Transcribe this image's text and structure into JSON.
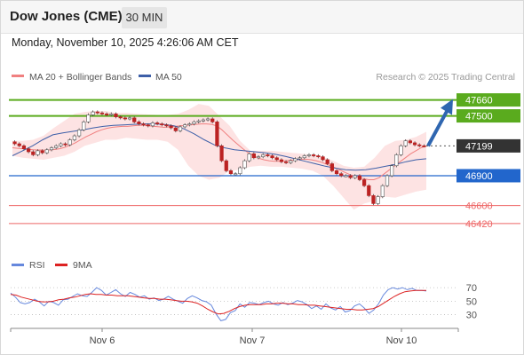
{
  "header": {
    "title": "Dow Jones (CME)",
    "timeframe": "30 MIN",
    "datetime": "Monday, November 10, 2025 4:26:06 AM CET"
  },
  "legend": {
    "bollinger_label": "MA 20 + Bollinger Bands",
    "ma50_label": "MA 50",
    "credit": "Research © 2025 Trading Central",
    "rsi_label": "RSI",
    "rsi_ma_label": "9MA"
  },
  "colors": {
    "bollinger": "#f08080",
    "band_fill": "#fde3e3",
    "ma50": "#3d5fa8",
    "resistance": "#5aab1e",
    "pivot": "#2266cc",
    "support": "#ee6666",
    "last_price": "#333333",
    "arrow": "#2f66b0",
    "rsi": "#6688dd",
    "rsi_ma": "#dd2222",
    "candle_up": "#ffffff",
    "candle_down": "#bb2222",
    "candle_wick": "#444444"
  },
  "chart_data": [
    {
      "type": "candlestick",
      "title": "Dow Jones (CME)",
      "timeframe": "30 MIN",
      "ylim": [
        46330,
        47790
      ],
      "x_tick_labels": [
        "Nov 6",
        "Nov 7",
        "Nov 10"
      ],
      "levels": [
        {
          "value": 47660,
          "label": "47660",
          "role": "resistance"
        },
        {
          "value": 47500,
          "label": "47500",
          "role": "resistance"
        },
        {
          "value": 47199,
          "label": "47199",
          "role": "last"
        },
        {
          "value": 46900,
          "label": "46900",
          "role": "pivot"
        },
        {
          "value": 46600,
          "label": "46600",
          "role": "support"
        },
        {
          "value": 46420,
          "label": "46420",
          "role": "support"
        }
      ],
      "close": [
        47220,
        47200,
        47170,
        47140,
        47110,
        47150,
        47130,
        47160,
        47180,
        47200,
        47220,
        47210,
        47260,
        47300,
        47360,
        47440,
        47510,
        47540,
        47530,
        47520,
        47510,
        47520,
        47490,
        47480,
        47470,
        47480,
        47440,
        47420,
        47410,
        47400,
        47430,
        47420,
        47410,
        47400,
        47380,
        47350,
        47390,
        47410,
        47420,
        47440,
        47450,
        47460,
        47470,
        47440,
        47200,
        47050,
        46950,
        46920,
        46920,
        46980,
        47050,
        47120,
        47080,
        47090,
        47110,
        47100,
        47080,
        47060,
        47040,
        47030,
        47050,
        47070,
        47080,
        47100,
        47110,
        47100,
        47090,
        47060,
        47020,
        46950,
        46920,
        46900,
        46900,
        46880,
        46900,
        46860,
        46800,
        46700,
        46620,
        46690,
        46800,
        46900,
        47000,
        47110,
        47200,
        47250,
        47230,
        47210,
        47200,
        47199
      ],
      "ma20": [
        47180,
        47175,
        47170,
        47165,
        47160,
        47158,
        47157,
        47158,
        47162,
        47170,
        47185,
        47205,
        47230,
        47260,
        47290,
        47315,
        47340,
        47360,
        47375,
        47385,
        47390,
        47395,
        47395,
        47400,
        47405,
        47405,
        47400,
        47395,
        47390,
        47385,
        47390,
        47395,
        47400,
        47405,
        47410,
        47415,
        47420,
        47420,
        47415,
        47400,
        47360,
        47310,
        47260,
        47215,
        47170,
        47130,
        47100,
        47075,
        47060,
        47050,
        47045,
        47045,
        47050,
        47055,
        47060,
        47065,
        47065,
        47060,
        47050,
        47035,
        47015,
        46995,
        46970,
        46945,
        46920,
        46900,
        46885,
        46870,
        46860,
        46860,
        46880,
        46920,
        46960,
        47000,
        47040,
        47080,
        47120,
        47150,
        47180,
        47200
      ],
      "ma50": [
        47100,
        47150,
        47200,
        47260,
        47310,
        47330,
        47345,
        47360,
        47380,
        47395,
        47405,
        47410,
        47415,
        47420,
        47420,
        47415,
        47400,
        47370,
        47320,
        47260,
        47210,
        47180,
        47160,
        47150,
        47140,
        47130,
        47115,
        47095,
        47070,
        47045,
        47020,
        46995,
        46975,
        46960,
        46955,
        46960,
        46975,
        46995,
        47015,
        47040,
        47060,
        47070
      ],
      "upper_band": [
        47250,
        47250,
        47260,
        47300,
        47380,
        47450,
        47520,
        47540,
        47550,
        47550,
        47530,
        47530,
        47520,
        47515,
        47510,
        47510,
        47520,
        47560,
        47620,
        47600,
        47500,
        47400,
        47250,
        47150,
        47150,
        47150,
        47140,
        47130,
        47120,
        47110,
        47090,
        47050,
        47000,
        46980,
        46990,
        47080,
        47200,
        47250,
        47260,
        47290,
        47340
      ],
      "lower_band": [
        47100,
        47080,
        47070,
        47060,
        47080,
        47100,
        47140,
        47200,
        47230,
        47260,
        47260,
        47280,
        47270,
        47260,
        47260,
        47240,
        47160,
        47000,
        46900,
        46860,
        46880,
        46950,
        46960,
        46990,
        47000,
        46990,
        46990,
        46980,
        46970,
        46950,
        46900,
        46800,
        46680,
        46560,
        46620,
        46650,
        46690,
        46680,
        46710,
        46740,
        46760
      ],
      "forecast": {
        "from": 47199,
        "to": 47660
      }
    },
    {
      "type": "line",
      "title": "RSI",
      "ylim": [
        15,
        82
      ],
      "y_ticks": [
        30,
        50,
        70
      ],
      "series": [
        {
          "name": "RSI",
          "values": [
            62,
            56,
            48,
            46,
            48,
            53,
            49,
            43,
            50,
            48,
            44,
            52,
            53,
            57,
            61,
            58,
            57,
            63,
            70,
            66,
            59,
            63,
            67,
            61,
            57,
            63,
            60,
            56,
            58,
            53,
            55,
            51,
            53,
            57,
            53,
            50,
            47,
            54,
            58,
            55,
            51,
            49,
            44,
            31,
            21,
            23,
            33,
            36,
            46,
            41,
            48,
            47,
            45,
            48,
            50,
            46,
            44,
            48,
            45,
            47,
            51,
            49,
            45,
            39,
            43,
            38,
            46,
            40,
            37,
            42,
            34,
            36,
            43,
            46,
            40,
            32,
            37,
            46,
            59,
            67,
            70,
            68,
            70,
            67,
            69,
            66,
            66,
            65
          ]
        },
        {
          "name": "9MA",
          "values": [
            60,
            59,
            56,
            54,
            52,
            50,
            49,
            49,
            50,
            52,
            53,
            55,
            56,
            58,
            60,
            61,
            60,
            60,
            59,
            59,
            58,
            58,
            58,
            57,
            56,
            55,
            54,
            54,
            53,
            53,
            52,
            51,
            50,
            50,
            49,
            47,
            43,
            38,
            34,
            31,
            32,
            35,
            39,
            42,
            44,
            45,
            45,
            45,
            46,
            46,
            47,
            47,
            46,
            46,
            45,
            45,
            44,
            44,
            43,
            42,
            41,
            40,
            39,
            38,
            38,
            37,
            37,
            38,
            39,
            42,
            47,
            52,
            57,
            61,
            64,
            65,
            66,
            66,
            66
          ]
        }
      ],
      "x_tick_labels": [
        "Nov 6",
        "Nov 7",
        "Nov 10"
      ]
    }
  ]
}
